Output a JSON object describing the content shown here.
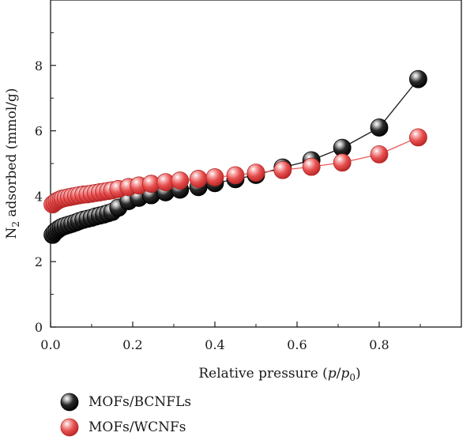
{
  "chart_data": {
    "type": "scatter",
    "xlabel_parts": [
      "Relative pressure (",
      "p",
      "/",
      "p",
      "0",
      ")"
    ],
    "ylabel_parts": [
      "N",
      "2",
      " adsorbed (mmol/g)"
    ],
    "xlim": [
      0,
      1.0
    ],
    "ylim": [
      0,
      10
    ],
    "x_ticks": [
      0.0,
      0.2,
      0.4,
      0.6,
      0.8
    ],
    "x_tick_labels": [
      "0.0",
      "0.2",
      "0.4",
      "0.6",
      "0.8"
    ],
    "y_ticks": [
      0,
      2,
      4,
      6,
      8
    ],
    "y_tick_labels": [
      "0",
      "2",
      "4",
      "6",
      "8"
    ],
    "grid": false,
    "legend_position": "bottom-left",
    "series": [
      {
        "name": "MOFs/BCNFLs",
        "color": "#1a1a1a",
        "x": [
          0.005,
          0.01,
          0.015,
          0.02,
          0.025,
          0.03,
          0.037,
          0.045,
          0.053,
          0.062,
          0.07,
          0.08,
          0.09,
          0.1,
          0.11,
          0.12,
          0.13,
          0.14,
          0.15,
          0.165,
          0.19,
          0.215,
          0.245,
          0.28,
          0.315,
          0.36,
          0.4,
          0.45,
          0.5,
          0.565,
          0.635,
          0.71,
          0.8,
          0.895
        ],
        "y": [
          2.82,
          2.9,
          2.95,
          3.0,
          3.04,
          3.07,
          3.1,
          3.13,
          3.16,
          3.2,
          3.24,
          3.28,
          3.31,
          3.34,
          3.38,
          3.41,
          3.44,
          3.48,
          3.52,
          3.65,
          3.85,
          3.95,
          4.03,
          4.12,
          4.2,
          4.28,
          4.4,
          4.52,
          4.65,
          4.88,
          5.1,
          5.48,
          6.1,
          7.58
        ]
      },
      {
        "name": "MOFs/WCNFs",
        "color": "#e85a5a",
        "x": [
          0.005,
          0.01,
          0.015,
          0.02,
          0.025,
          0.03,
          0.037,
          0.045,
          0.053,
          0.062,
          0.07,
          0.08,
          0.09,
          0.1,
          0.11,
          0.12,
          0.13,
          0.14,
          0.15,
          0.165,
          0.19,
          0.215,
          0.245,
          0.28,
          0.315,
          0.36,
          0.4,
          0.45,
          0.5,
          0.565,
          0.635,
          0.71,
          0.8,
          0.895
        ],
        "y": [
          3.75,
          3.8,
          3.85,
          3.88,
          3.91,
          3.93,
          3.95,
          3.97,
          3.99,
          4.01,
          4.03,
          4.05,
          4.06,
          4.08,
          4.1,
          4.12,
          4.14,
          4.16,
          4.18,
          4.22,
          4.28,
          4.33,
          4.38,
          4.43,
          4.48,
          4.53,
          4.58,
          4.64,
          4.72,
          4.8,
          4.9,
          5.03,
          5.28,
          5.8
        ]
      }
    ]
  }
}
